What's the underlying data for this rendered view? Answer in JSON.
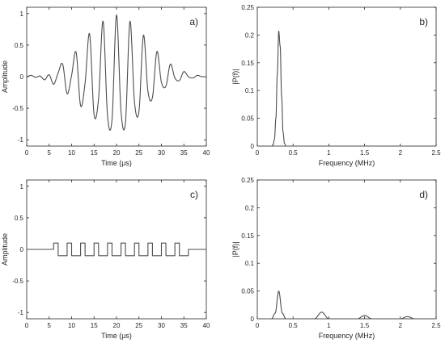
{
  "chart_data": [
    {
      "panel": "a)",
      "type": "line",
      "xlabel": "Time (μs)",
      "ylabel": "Amplitude",
      "xlim": [
        0,
        40
      ],
      "ylim": [
        -1.1,
        1.1
      ],
      "xticks": [
        0,
        5,
        10,
        15,
        20,
        25,
        30,
        35,
        40
      ],
      "yticks": [
        -1,
        -0.5,
        0,
        0.5,
        1
      ],
      "series": [
        {
          "kind": "gaussian-tone-burst",
          "color": "#4d4d4d",
          "x": [
            0,
            1,
            2,
            3,
            4,
            5,
            6,
            7,
            8,
            9,
            10,
            11,
            12,
            13,
            14,
            15,
            16,
            17,
            18,
            19,
            20,
            21,
            22,
            23,
            24,
            25,
            26,
            27,
            28,
            29,
            30,
            31,
            32,
            33,
            34,
            35,
            36,
            37,
            38,
            39,
            40
          ],
          "y": [
            0,
            0.02,
            -0.01,
            0.01,
            -0.05,
            0.03,
            -0.12,
            0.06,
            0.2,
            -0.27,
            0.02,
            0.39,
            -0.46,
            -0.1,
            0.68,
            -0.6,
            -0.35,
            0.88,
            -0.62,
            -0.68,
            0.98,
            -0.55,
            -0.72,
            0.88,
            -0.4,
            -0.55,
            0.66,
            -0.23,
            -0.33,
            0.4,
            -0.09,
            -0.15,
            0.2,
            -0.02,
            -0.06,
            0.08,
            0,
            -0.02,
            0.02,
            0,
            0
          ]
        }
      ]
    },
    {
      "panel": "b)",
      "type": "line",
      "xlabel": "Frequency (MHz)",
      "ylabel": "|P(f)|",
      "xlim": [
        0,
        2.5
      ],
      "ylim": [
        0,
        0.25
      ],
      "xticks": [
        0,
        0.5,
        1,
        1.5,
        2,
        2.5
      ],
      "yticks": [
        0,
        0.05,
        0.1,
        0.15,
        0.2,
        0.25
      ],
      "series": [
        {
          "kind": "spectrum",
          "color": "#4d4d4d",
          "x": [
            0,
            0.2,
            0.22,
            0.24,
            0.26,
            0.28,
            0.3,
            0.32,
            0.34,
            0.36,
            0.38,
            0.4,
            2.5
          ],
          "y": [
            0,
            0,
            0.002,
            0.012,
            0.05,
            0.13,
            0.207,
            0.18,
            0.09,
            0.025,
            0.005,
            0,
            0
          ]
        }
      ]
    },
    {
      "panel": "c)",
      "type": "line",
      "xlabel": "Time (μs)",
      "ylabel": "Amplitude",
      "xlim": [
        0,
        40
      ],
      "ylim": [
        -1.1,
        1.1
      ],
      "xticks": [
        0,
        5,
        10,
        15,
        20,
        25,
        30,
        35,
        40
      ],
      "yticks": [
        -1,
        -0.5,
        0,
        0.5,
        1
      ],
      "series": [
        {
          "kind": "square-burst",
          "color": "#4d4d4d",
          "x": [
            0,
            5,
            6,
            7,
            9,
            10,
            12,
            13,
            15,
            16,
            18,
            19,
            21,
            22,
            24,
            25,
            27,
            28,
            30,
            31,
            33,
            34,
            36,
            40
          ],
          "y": [
            0,
            0,
            0.1,
            -0.1,
            0.1,
            -0.1,
            0.1,
            -0.1,
            0.1,
            -0.1,
            0.1,
            -0.1,
            0.1,
            -0.1,
            0.1,
            -0.1,
            0.1,
            -0.1,
            0.1,
            -0.1,
            0.1,
            -0.1,
            0,
            0
          ]
        }
      ]
    },
    {
      "panel": "d)",
      "type": "line",
      "xlabel": "Frequency (MHz)",
      "ylabel": "|P(f)|",
      "xlim": [
        0,
        2.5
      ],
      "ylim": [
        0,
        0.25
      ],
      "xticks": [
        0,
        0.5,
        1,
        1.5,
        2,
        2.5
      ],
      "yticks": [
        0,
        0.05,
        0.1,
        0.15,
        0.2,
        0.25
      ],
      "series": [
        {
          "kind": "spectrum",
          "color": "#4d4d4d",
          "x": [
            0,
            0.2,
            0.25,
            0.3,
            0.35,
            0.4,
            0.8,
            0.9,
            1.0,
            1.4,
            1.5,
            1.6,
            2.0,
            2.1,
            2.2,
            2.5
          ],
          "y": [
            0,
            0,
            0.01,
            0.05,
            0.01,
            0,
            0,
            0.012,
            0,
            0,
            0.006,
            0,
            0,
            0.004,
            0,
            0
          ]
        }
      ]
    }
  ]
}
